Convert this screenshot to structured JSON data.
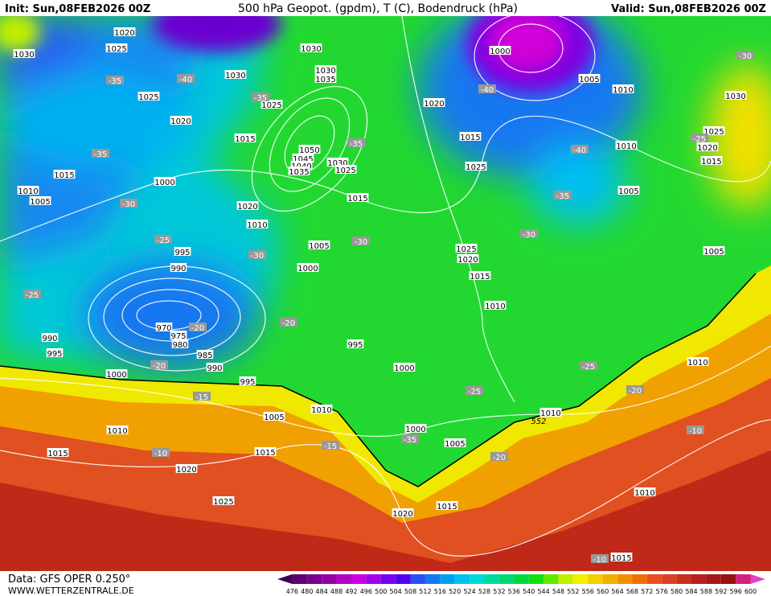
{
  "header": {
    "init": "Init: Sun,08FEB2026 00Z",
    "title": "500 hPa Geopot. (gpdm), T (C), Bodendruck (hPa)",
    "valid": "Valid: Sun,08FEB2026 00Z"
  },
  "map": {
    "isobar_labels": [
      "1020",
      "1025",
      "1030",
      "1030",
      "1030",
      "1030",
      "1035",
      "1025",
      "1025",
      "1020",
      "1015",
      "1050",
      "1045",
      "1040",
      "1035",
      "1030",
      "1025",
      "1015",
      "1000",
      "1010",
      "1005",
      "1020",
      "1015",
      "1010",
      "1005",
      "1000",
      "995",
      "990",
      "970",
      "975",
      "980",
      "985",
      "990",
      "995",
      "1000",
      "990",
      "995",
      "995",
      "1000",
      "1005",
      "1010",
      "1010",
      "1015",
      "1015",
      "1020",
      "1025",
      "1020",
      "1015",
      "1000",
      "1005",
      "1010",
      "1010",
      "1015",
      "1000",
      "1005",
      "1010",
      "1020",
      "1015",
      "1025",
      "1010",
      "1005",
      "1025",
      "1020",
      "1015",
      "1010",
      "1005",
      "1030",
      "1025",
      "1020",
      "1015",
      "1010"
    ],
    "temperature_labels": [
      "-35",
      "-40",
      "-35",
      "-35",
      "-30",
      "-35",
      "-40",
      "-40",
      "-35",
      "-30",
      "-30",
      "-30",
      "-25",
      "-25",
      "-20",
      "-20",
      "-20",
      "-15",
      "-10",
      "-15",
      "-25",
      "-35",
      "-20",
      "-25",
      "-20",
      "-10",
      "-10",
      "-30",
      "-25"
    ],
    "contour_label": "552"
  },
  "footer": {
    "source": "Data: GFS OPER 0.250°",
    "website": "WWW.WETTERZENTRALE.DE"
  },
  "legend": {
    "ticks": [
      476,
      480,
      484,
      488,
      492,
      496,
      500,
      504,
      508,
      512,
      516,
      520,
      524,
      528,
      532,
      536,
      540,
      544,
      548,
      552,
      556,
      560,
      564,
      568,
      572,
      576,
      580,
      584,
      588,
      592,
      596,
      600
    ],
    "colors": [
      "#3d0050",
      "#5a0070",
      "#7a0090",
      "#9400a8",
      "#b400c8",
      "#c800e0",
      "#a000e8",
      "#7800f0",
      "#5000f0",
      "#2850f0",
      "#1478f0",
      "#00a0f0",
      "#00c0f0",
      "#00d8d8",
      "#00d8a0",
      "#00d870",
      "#00d840",
      "#10e010",
      "#60e800",
      "#c0f000",
      "#f0f000",
      "#f0d000",
      "#f0b000",
      "#f09000",
      "#f07000",
      "#e85020",
      "#d84020",
      "#c83020",
      "#b82020",
      "#a81818",
      "#981010",
      "#d02080",
      "#e040c0"
    ]
  }
}
